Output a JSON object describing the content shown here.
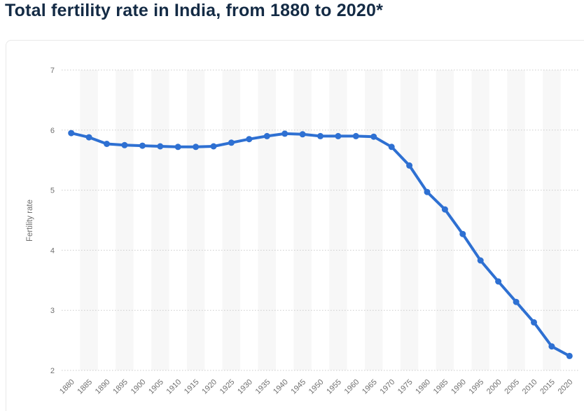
{
  "page": {
    "title": "Total fertility rate in India, from 1880 to 2020*"
  },
  "colors": {
    "title_text": "#142b45",
    "series_line": "#2e70d2",
    "marker_fill": "#2e70d2",
    "gridline": "#cbcbcb",
    "plot_band": "#f7f7f7",
    "axis_text": "#6f6f6f",
    "card_border": "#e8e8e8",
    "background": "#ffffff"
  },
  "chart_data": {
    "type": "line",
    "title": "Total fertility rate in India, from 1880 to 2020*",
    "xlabel": "",
    "ylabel": "Fertility rate",
    "ylim": [
      2,
      7
    ],
    "yticks": [
      2,
      3,
      4,
      5,
      6,
      7
    ],
    "grid": "horizontal-dotted",
    "legend_position": "none",
    "marker": "circle",
    "categories": [
      "1880",
      "1885",
      "1890",
      "1895",
      "1900",
      "1905",
      "1910",
      "1915",
      "1920",
      "1925",
      "1930",
      "1935",
      "1940",
      "1945",
      "1950",
      "1955",
      "1960",
      "1965",
      "1970",
      "1975",
      "1980",
      "1985",
      "1990",
      "1995",
      "2000",
      "2005",
      "2010",
      "2015",
      "2020"
    ],
    "values": [
      5.95,
      5.88,
      5.77,
      5.75,
      5.74,
      5.73,
      5.72,
      5.72,
      5.73,
      5.79,
      5.85,
      5.9,
      5.94,
      5.93,
      5.9,
      5.9,
      5.9,
      5.89,
      5.72,
      5.41,
      4.97,
      4.68,
      4.27,
      3.83,
      3.48,
      3.14,
      2.8,
      2.4,
      2.24
    ]
  }
}
